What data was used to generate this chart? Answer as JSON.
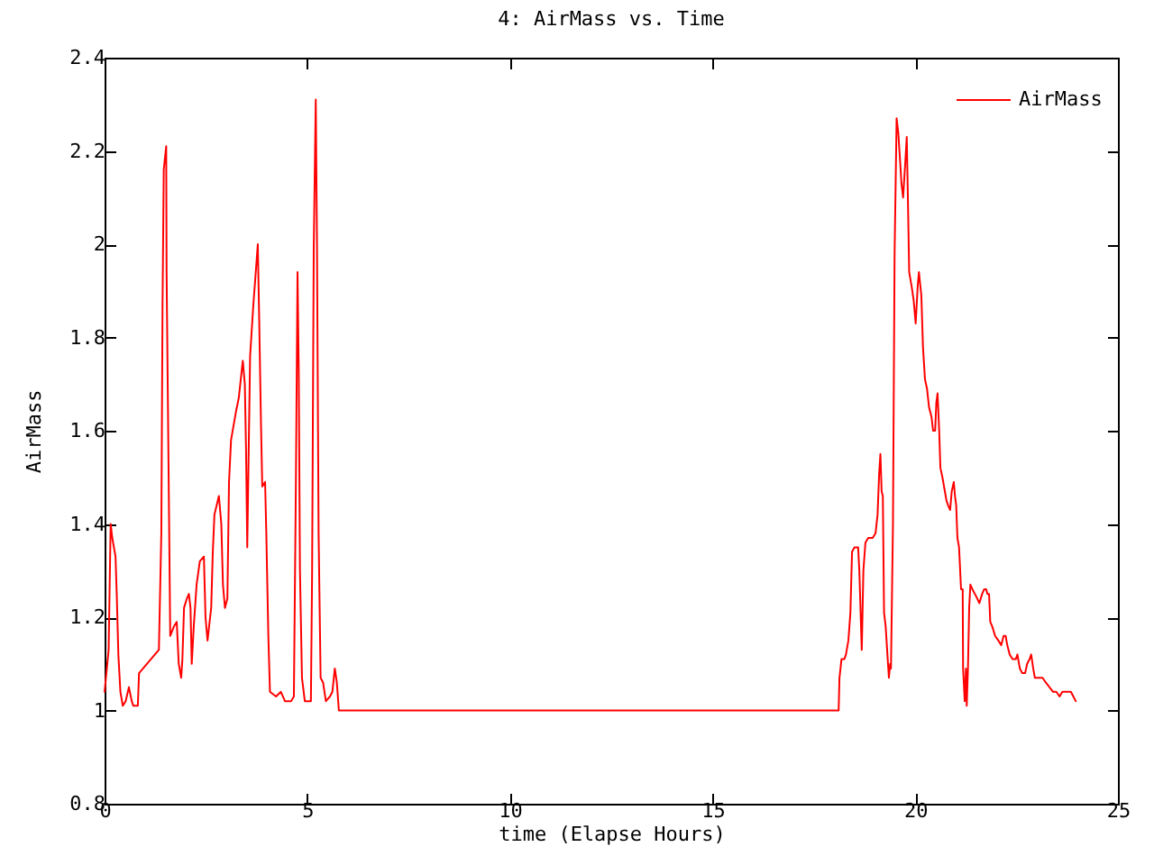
{
  "chart_data": {
    "type": "line",
    "title": "4: AirMass vs. Time",
    "xlabel": "time (Elapse Hours)",
    "ylabel": "AirMass",
    "x": [
      0,
      0.1,
      0.15,
      0.19,
      0.27,
      0.3,
      0.34,
      0.39,
      0.45,
      0.52,
      0.6,
      0.67,
      0.71,
      0.82,
      0.85,
      1.34,
      1.4,
      1.43,
      1.46,
      1.52,
      1.53,
      1.59,
      1.62,
      1.71,
      1.78,
      1.83,
      1.89,
      1.92,
      1.96,
      2.03,
      2.08,
      2.12,
      2.15,
      2.2,
      2.27,
      2.35,
      2.45,
      2.49,
      2.54,
      2.63,
      2.67,
      2.71,
      2.82,
      2.88,
      2.92,
      2.97,
      3.03,
      3.07,
      3.12,
      3.24,
      3.31,
      3.36,
      3.41,
      3.46,
      3.49,
      3.52,
      3.59,
      3.67,
      3.73,
      3.78,
      3.81,
      3.86,
      3.89,
      3.96,
      3.99,
      4.04,
      4.08,
      4.23,
      4.35,
      4.45,
      4.6,
      4.67,
      4.72,
      4.76,
      4.79,
      4.82,
      4.87,
      4.94,
      5.09,
      5.12,
      5.16,
      5.21,
      5.24,
      5.28,
      5.33,
      5.39,
      5.46,
      5.56,
      5.62,
      5.68,
      5.73,
      5.78,
      18.11,
      18.13,
      18.18,
      18.25,
      18.29,
      18.35,
      18.4,
      18.44,
      18.5,
      18.59,
      18.62,
      18.68,
      18.72,
      18.77,
      18.84,
      18.95,
      19.02,
      19.07,
      19.11,
      19.14,
      19.17,
      19.2,
      19.23,
      19.27,
      19.32,
      19.35,
      19.38,
      19.4,
      19.45,
      19.49,
      19.54,
      19.58,
      19.61,
      19.66,
      19.7,
      19.75,
      19.79,
      19.82,
      19.85,
      19.91,
      19.96,
      20.01,
      20.06,
      20.09,
      20.15,
      20.19,
      20.24,
      20.29,
      20.34,
      20.4,
      20.44,
      20.49,
      20.52,
      20.55,
      20.59,
      20.62,
      20.67,
      20.73,
      20.77,
      20.81,
      20.86,
      20.9,
      20.95,
      20.98,
      21.01,
      21.04,
      21.08,
      21.13,
      21.17,
      21.18,
      21.22,
      21.25,
      21.27,
      21.3,
      21.33,
      21.36,
      21.41,
      21.47,
      21.53,
      21.58,
      21.65,
      21.7,
      21.75,
      21.78,
      21.82,
      21.85,
      21.9,
      21.97,
      22.05,
      22.12,
      22.18,
      22.23,
      22.27,
      22.33,
      22.4,
      22.48,
      22.52,
      22.58,
      22.64,
      22.71,
      22.76,
      22.82,
      22.86,
      22.91,
      22.95,
      23.03,
      23.14,
      23.22,
      23.31,
      23.4,
      23.48,
      23.56,
      23.63,
      23.74,
      23.84,
      23.9,
      23.96
    ],
    "series": [
      {
        "name": "AirMass",
        "color": "#ff0000",
        "values": [
          1.04,
          1.13,
          1.4,
          1.37,
          1.33,
          1.25,
          1.12,
          1.04,
          1.01,
          1.02,
          1.05,
          1.02,
          1.01,
          1.01,
          1.08,
          1.13,
          1.38,
          1.87,
          2.16,
          2.21,
          1.94,
          1.42,
          1.16,
          1.18,
          1.19,
          1.1,
          1.07,
          1.11,
          1.22,
          1.24,
          1.25,
          1.22,
          1.1,
          1.18,
          1.27,
          1.32,
          1.33,
          1.2,
          1.15,
          1.22,
          1.34,
          1.42,
          1.46,
          1.4,
          1.27,
          1.22,
          1.24,
          1.49,
          1.58,
          1.64,
          1.67,
          1.71,
          1.75,
          1.7,
          1.56,
          1.35,
          1.76,
          1.87,
          1.94,
          2.0,
          1.86,
          1.61,
          1.48,
          1.49,
          1.38,
          1.16,
          1.04,
          1.03,
          1.04,
          1.02,
          1.02,
          1.03,
          1.49,
          1.94,
          1.73,
          1.3,
          1.07,
          1.02,
          1.02,
          1.3,
          1.99,
          2.31,
          2.0,
          1.38,
          1.07,
          1.06,
          1.02,
          1.03,
          1.04,
          1.09,
          1.06,
          1.0,
          1.0,
          1.07,
          1.11,
          1.11,
          1.12,
          1.15,
          1.21,
          1.34,
          1.35,
          1.35,
          1.3,
          1.13,
          1.3,
          1.36,
          1.37,
          1.37,
          1.38,
          1.42,
          1.51,
          1.55,
          1.47,
          1.46,
          1.21,
          1.18,
          1.11,
          1.07,
          1.1,
          1.09,
          1.4,
          1.98,
          2.27,
          2.24,
          2.2,
          2.13,
          2.1,
          2.17,
          2.23,
          2.09,
          1.94,
          1.91,
          1.88,
          1.83,
          1.91,
          1.94,
          1.89,
          1.78,
          1.71,
          1.69,
          1.65,
          1.63,
          1.6,
          1.6,
          1.66,
          1.68,
          1.6,
          1.52,
          1.5,
          1.47,
          1.45,
          1.44,
          1.43,
          1.47,
          1.49,
          1.46,
          1.44,
          1.37,
          1.35,
          1.26,
          1.26,
          1.09,
          1.02,
          1.09,
          1.01,
          1.09,
          1.22,
          1.27,
          1.26,
          1.25,
          1.24,
          1.23,
          1.25,
          1.26,
          1.26,
          1.25,
          1.25,
          1.19,
          1.18,
          1.16,
          1.15,
          1.14,
          1.16,
          1.16,
          1.14,
          1.12,
          1.11,
          1.11,
          1.12,
          1.09,
          1.08,
          1.08,
          1.1,
          1.11,
          1.12,
          1.09,
          1.07,
          1.07,
          1.07,
          1.06,
          1.05,
          1.04,
          1.04,
          1.03,
          1.04,
          1.04,
          1.04,
          1.03,
          1.02
        ]
      }
    ],
    "xlim": [
      0,
      25
    ],
    "xticks": [
      0,
      5,
      10,
      15,
      20,
      25
    ],
    "ylim": [
      0.8,
      2.4
    ],
    "yticks": [
      0.8,
      1,
      1.2,
      1.4,
      1.6,
      1.8,
      2,
      2.2,
      2.4
    ],
    "grid": false,
    "legend": "top right"
  }
}
